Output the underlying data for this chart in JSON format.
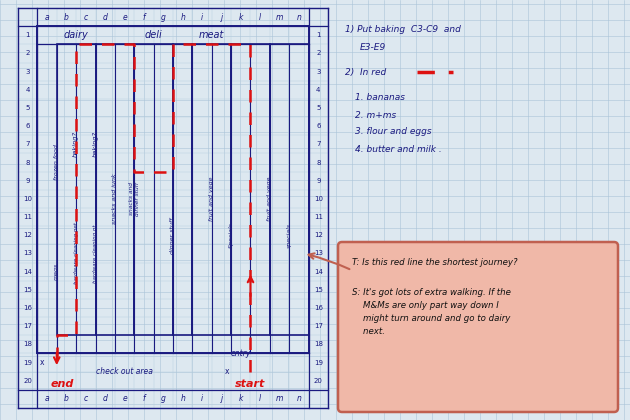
{
  "bg_color": "#dde8f0",
  "grid_color": "#aac4d8",
  "col_labels": [
    "a",
    "b",
    "c",
    "d",
    "e",
    "f",
    "g",
    "h",
    "i",
    "j",
    "k",
    "l",
    "m",
    "n"
  ],
  "row_labels": [
    "1",
    "2",
    "3",
    "4",
    "5",
    "6",
    "7",
    "8",
    "9",
    "10",
    "11",
    "12",
    "13",
    "14",
    "15",
    "16",
    "17",
    "18",
    "19",
    "20"
  ],
  "aisle_color": "#1a1a80",
  "red_color": "#dd1111",
  "note1a": "1) Put baking  C3-C9  and",
  "note1b": "      E3-E9",
  "note2": "2)  In red",
  "items": [
    "1. bananas",
    "2. m+ms",
    "3. flour and eggs",
    "4. butter and milk ."
  ],
  "speech_t": "T: Is this red line the shortest journey?",
  "speech_s": "S: It's got lots of extra walking. If the\n    M&Ms are only part way down I\n    might turn around and go to dairy\n    next.",
  "speech_bg": "#f0b8a8",
  "speech_edge": "#c06050",
  "dairy_label": "dairy",
  "deli_label": "deli",
  "meat_label": "meat",
  "checkout_label": "check out area",
  "entry_label": "entry",
  "start_label": "start",
  "end_label": "end"
}
